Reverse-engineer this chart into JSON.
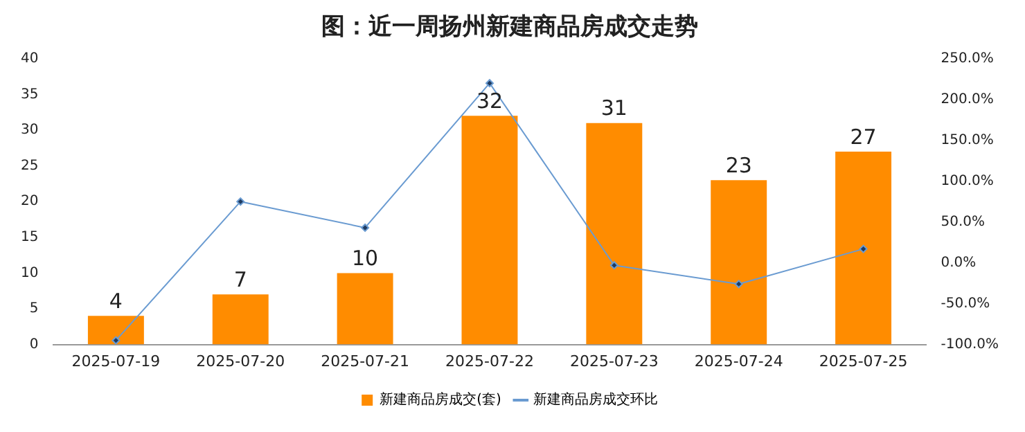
{
  "chart_data": {
    "type": "bar",
    "title": "图：近一周扬州新建商品房成交走势",
    "categories": [
      "2025-07-19",
      "2025-07-20",
      "2025-07-21",
      "2025-07-22",
      "2025-07-23",
      "2025-07-24",
      "2025-07-25"
    ],
    "series": [
      {
        "name": "新建商品房成交(套)",
        "color": "#ff8c00",
        "values": [
          4,
          7,
          10,
          32,
          31,
          23,
          27
        ],
        "value_labels": [
          "4",
          "7",
          "10",
          "32",
          "31",
          "23",
          "27"
        ]
      },
      {
        "name": "新建商品房成交环比",
        "type": "line",
        "axis": "y2",
        "color": "#6a9bd1",
        "marker": "diamond",
        "values": [
          -95,
          75,
          43,
          220,
          -3,
          -26,
          17
        ]
      }
    ],
    "ylim": [
      0,
      40
    ],
    "yticks": [
      0,
      5,
      10,
      15,
      20,
      25,
      30,
      35,
      40
    ],
    "y2lim": [
      -100,
      250
    ],
    "y2ticks": [
      {
        "value": -100,
        "label": "-100.0%"
      },
      {
        "value": -50,
        "label": "-50.0%"
      },
      {
        "value": 0,
        "label": "0.0%"
      },
      {
        "value": 50,
        "label": "50.0%"
      },
      {
        "value": 100,
        "label": "100.0%"
      },
      {
        "value": 150,
        "label": "150.0%"
      },
      {
        "value": 200,
        "label": "200.0%"
      },
      {
        "value": 250,
        "label": "250.0%"
      }
    ],
    "grid": false,
    "legend": "bottom"
  }
}
